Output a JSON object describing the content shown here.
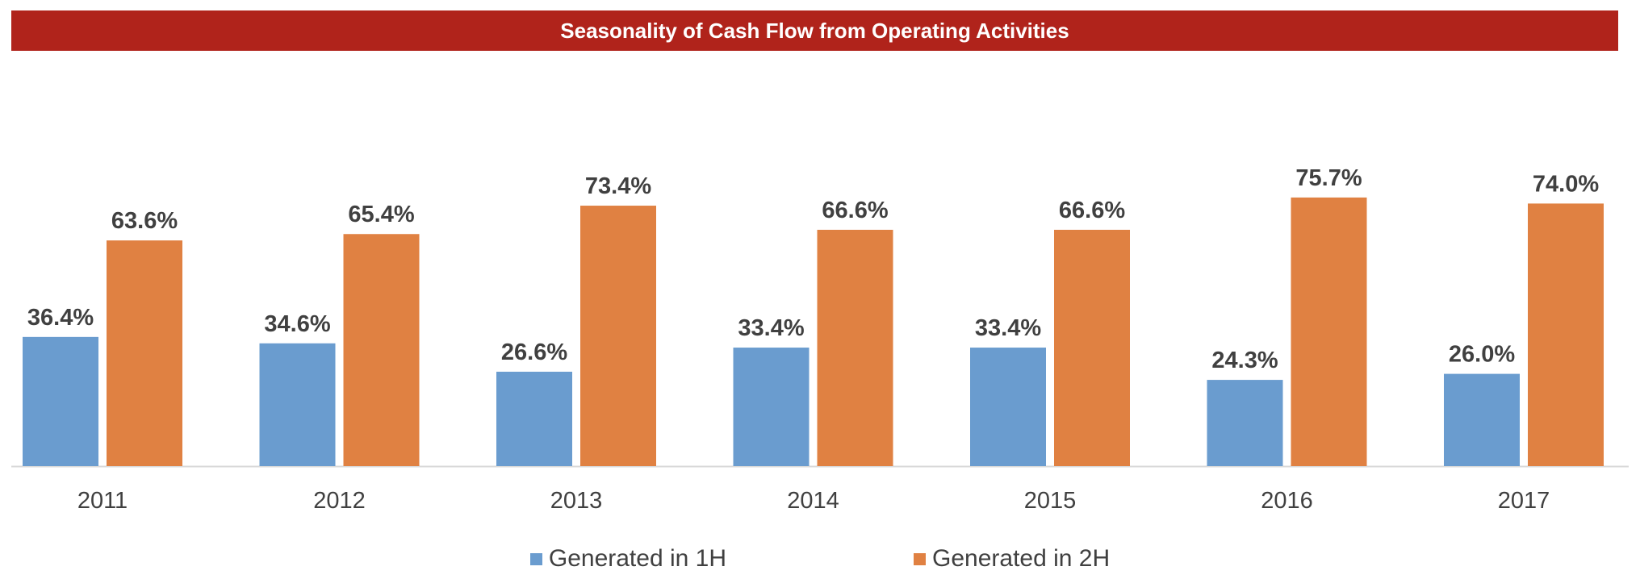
{
  "chart_data": {
    "type": "bar",
    "title": "Seasonality of Cash Flow from Operating Activities",
    "categories": [
      "2011",
      "2012",
      "2013",
      "2014",
      "2015",
      "2016",
      "2017"
    ],
    "series": [
      {
        "name": "Generated in 1H",
        "color": "#6a9ccf",
        "values": [
          36.4,
          34.6,
          26.6,
          33.4,
          33.4,
          24.3,
          26.0
        ],
        "labels": [
          "36.4%",
          "34.6%",
          "26.6%",
          "33.4%",
          "33.4%",
          "24.3%",
          "26.0%"
        ]
      },
      {
        "name": "Generated in 2H",
        "color": "#e08142",
        "values": [
          63.6,
          65.4,
          73.4,
          66.6,
          66.6,
          75.7,
          74.0
        ],
        "labels": [
          "63.6%",
          "65.4%",
          "73.4%",
          "66.6%",
          "66.6%",
          "75.7%",
          "74.0%"
        ]
      }
    ],
    "xlabel": "",
    "ylabel": "",
    "ylim": [
      0,
      100
    ],
    "grid": false,
    "legend_position": "bottom",
    "title_bar_color": "#b0231b"
  }
}
